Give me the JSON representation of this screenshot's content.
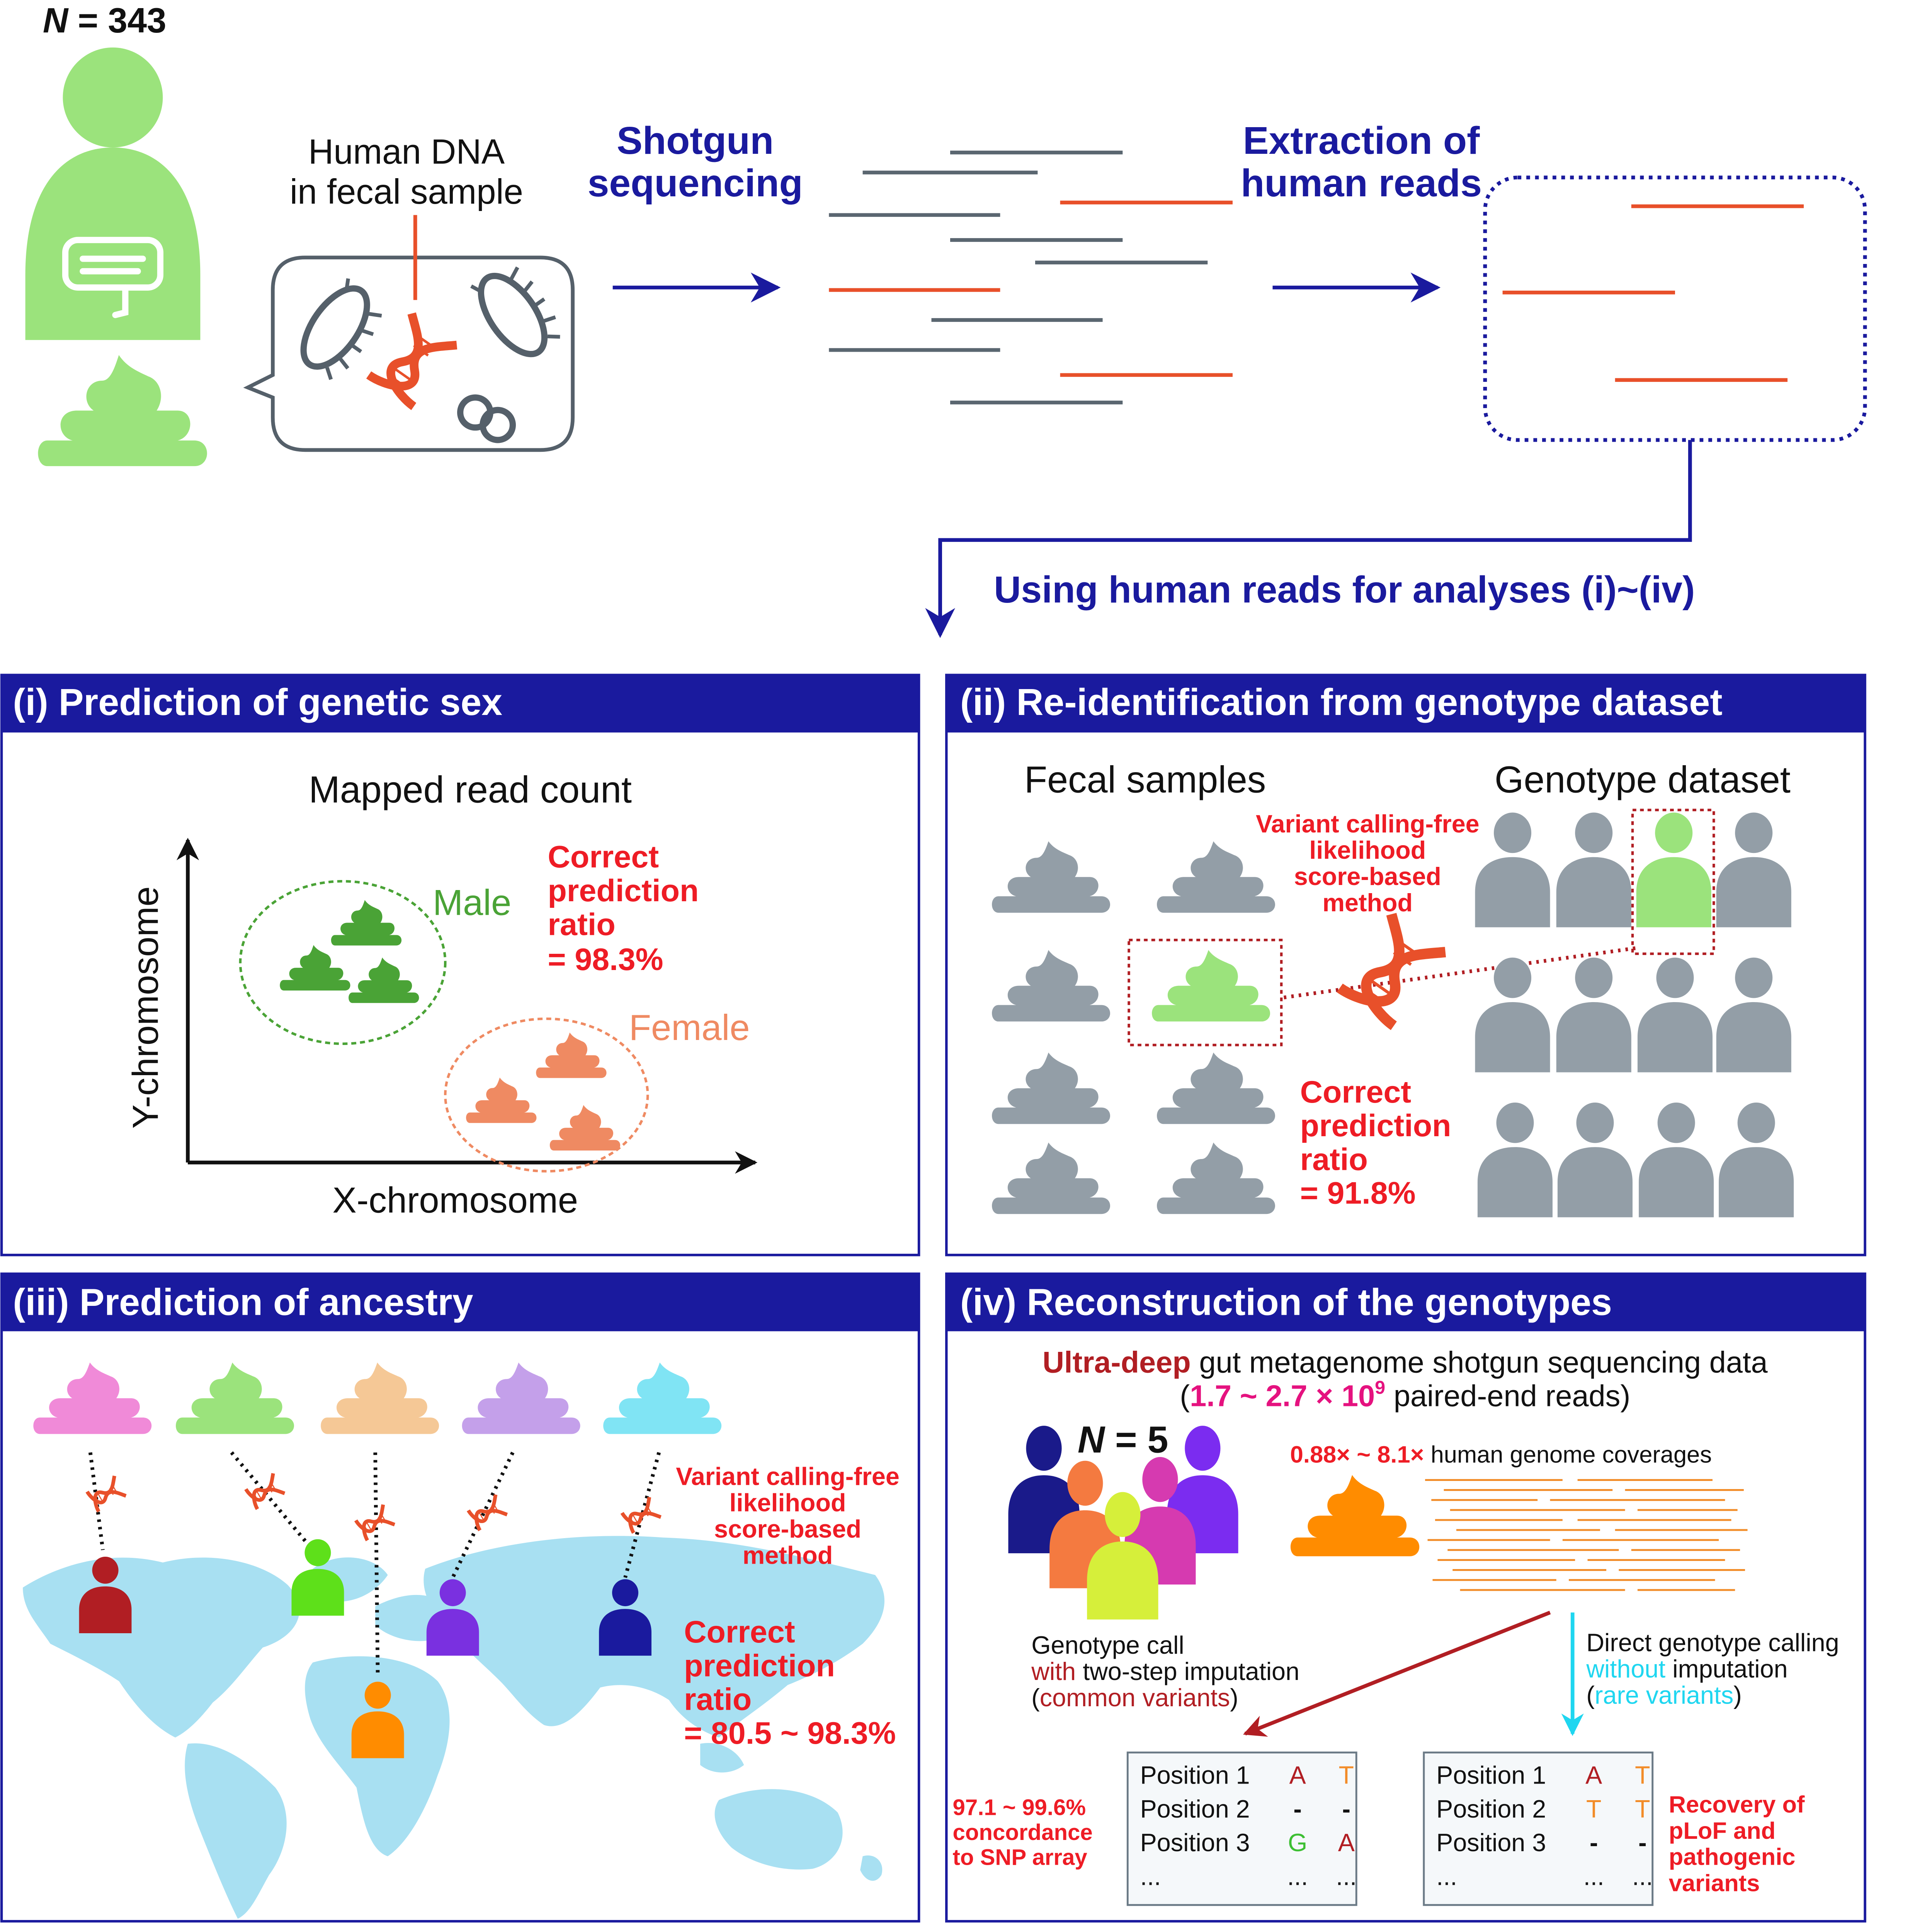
{
  "colors": {
    "navy": "#1a1a9e",
    "red": "#ee1c25",
    "orange_red": "#e8502a",
    "light_green": "#9be37c",
    "green": "#4aa336",
    "salmon": "#ef8a62",
    "grey": "#939ea7",
    "magenta": "#e5127f",
    "cyan": "#1fd6f0",
    "dark_red": "#b11e23",
    "orange": "#ff8c00",
    "map_blue": "#a8e0f2"
  },
  "header": {
    "n_label": "N",
    "n_value": " = 343",
    "human_dna_line1": "Human DNA",
    "human_dna_line2": "in fecal sample",
    "shotgun_line1": "Shotgun",
    "shotgun_line2": "sequencing",
    "extraction_line1": "Extraction of",
    "extraction_line2": "human reads",
    "using_reads": "Using human reads for analyses (i)~(iv)"
  },
  "panel_i": {
    "title": "(i) Prediction of genetic sex",
    "chart_title": "Mapped read count",
    "y_axis": "Y-chromosome",
    "x_axis": "X-chromosome",
    "male_label": "Male",
    "female_label": "Female",
    "ratio_line1": "Correct",
    "ratio_line2": "prediction",
    "ratio_line3": "ratio",
    "ratio_value": "= 98.3%"
  },
  "panel_ii": {
    "title": "(ii) Re-identification from genotype dataset",
    "fecal_label": "Fecal samples",
    "genotype_label": "Genotype dataset",
    "method_line1": "Variant calling-free",
    "method_line2": "likelihood",
    "method_line3": "score-based",
    "method_line4": "method",
    "ratio_line1": "Correct",
    "ratio_line2": "prediction",
    "ratio_line3": "ratio",
    "ratio_value": "= 91.8%"
  },
  "panel_iii": {
    "title": "(iii) Prediction of ancestry",
    "method_line1": "Variant calling-free",
    "method_line2": "likelihood",
    "method_line3": "score-based",
    "method_line4": "method",
    "ratio_line1": "Correct",
    "ratio_line2": "prediction",
    "ratio_line3": "ratio",
    "ratio_value": "= 80.5 ~ 98.3%",
    "sample_colors": [
      "#f08ad8",
      "#9be37c",
      "#f5c896",
      "#c4a0ea",
      "#80e4f4"
    ],
    "person_colors": [
      "#b11e23",
      "#5ee01a",
      "#ff8c00",
      "#7a30e0",
      "#1a1a9e"
    ]
  },
  "panel_iv": {
    "title": "(iv) Reconstruction of the genotypes",
    "data_line_em": "Ultra-deep",
    "data_line_rest": " gut metagenome shotgun sequencing data",
    "reads_open": "(",
    "reads_range": "1.7 ~ 2.7 × 10",
    "reads_exp": "9",
    "reads_close": " paired-end reads)",
    "n_label": "N",
    "n_value": " = 5",
    "coverage_em": "0.88× ~ 8.1×",
    "coverage_rest": " human genome coverages",
    "left_call_line1": "Genotype call",
    "left_call_with": "with",
    "left_call_line2_rest": " two-step imputation",
    "left_call_paren_open": "(",
    "left_call_common": "common variants",
    "left_call_paren_close": ")",
    "right_call_line1": "Direct genotype calling",
    "right_call_without": "without",
    "right_call_line2_rest": " imputation",
    "right_call_paren_open": "(",
    "right_call_rare": "rare variants",
    "right_call_paren_close": ")",
    "concordance_line1": "97.1 ~ 99.6%",
    "concordance_line2": "concordance",
    "concordance_line3": "to SNP array",
    "recovery_line1": "Recovery of",
    "recovery_line2": "pLoF and",
    "recovery_line3": "pathogenic",
    "recovery_line4": "variants",
    "person_colors": [
      "#1a1a8a",
      "#7b2cf0",
      "#d63ab0",
      "#f47a40",
      "#d6ef3a"
    ],
    "left_table": [
      [
        "Position 1",
        "A",
        "T"
      ],
      [
        "Position 2",
        "-",
        "-"
      ],
      [
        "Position 3",
        "G",
        "A"
      ],
      [
        "...",
        "...",
        "..."
      ]
    ],
    "left_table_colors": [
      [
        "#b11e23",
        "#f28c28"
      ],
      [
        "#111111",
        "#111111"
      ],
      [
        "#3cbf32",
        "#b11e23"
      ],
      [
        "#111111",
        "#111111"
      ]
    ],
    "right_table": [
      [
        "Position 1",
        "A",
        "T"
      ],
      [
        "Position 2",
        "T",
        "T"
      ],
      [
        "Position 3",
        "-",
        "-"
      ],
      [
        "...",
        "...",
        "..."
      ]
    ],
    "right_table_colors": [
      [
        "#b11e23",
        "#f28c28"
      ],
      [
        "#f28c28",
        "#f28c28"
      ],
      [
        "#111111",
        "#111111"
      ],
      [
        "#111111",
        "#111111"
      ]
    ]
  }
}
